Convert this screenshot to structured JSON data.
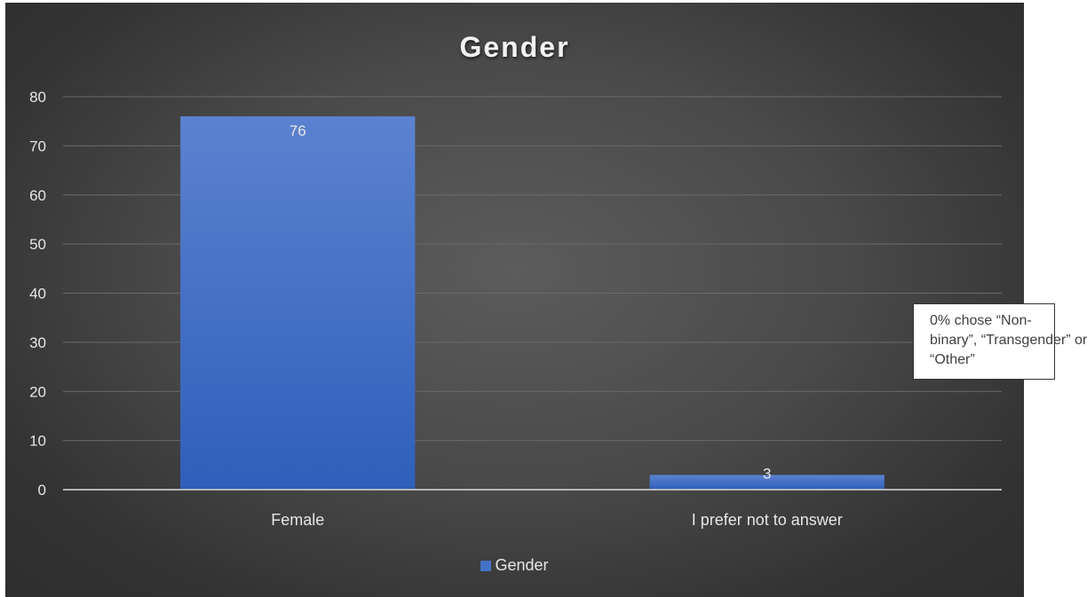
{
  "chart_data": {
    "type": "bar",
    "title": "Gender",
    "categories": [
      "Female",
      "I prefer not to answer"
    ],
    "series": [
      {
        "name": "Gender",
        "values": [
          76,
          3
        ],
        "color": "#4472c4"
      }
    ],
    "data_labels": [
      "76",
      "3"
    ],
    "ylim": [
      0,
      80
    ],
    "yticks": [
      0,
      10,
      20,
      30,
      40,
      50,
      60,
      70,
      80
    ],
    "xlabel": "",
    "ylabel": "",
    "grid": true,
    "legend_position": "bottom",
    "annotation": "0% chose “Non-binary”, “Transgender” or “Other”"
  },
  "colors": {
    "bar": "#4472c4",
    "gridline": "#6a6a6a",
    "axis_text": "#e6e6e6",
    "background": "#3a3a3a"
  }
}
